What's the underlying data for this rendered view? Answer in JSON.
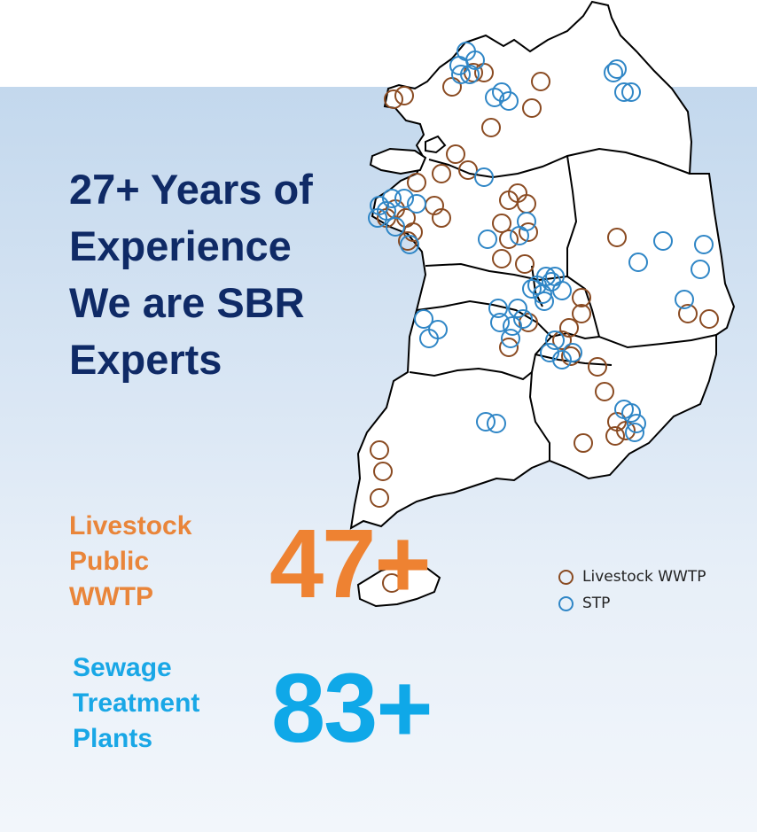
{
  "headline": {
    "lines": [
      "27+ Years of",
      "Experience",
      "We are SBR",
      "Experts"
    ]
  },
  "stats": {
    "livestock": {
      "label_lines": [
        "Livestock",
        "Public",
        "WWTP"
      ],
      "value": "47+"
    },
    "sewage": {
      "label_lines": [
        "Sewage",
        "Treatment",
        "Plants"
      ],
      "value": "83+"
    }
  },
  "legend": {
    "livestock": "Livestock WWTP",
    "stp": "STP"
  },
  "colors": {
    "headline": "#0f2a66",
    "livestock_accent": "#ee8232",
    "sewage_accent": "#0fa8e8",
    "livestock_marker": "#8a4b22",
    "stp_marker": "#2f86c6"
  },
  "map": {
    "region": "South Korea",
    "marker_counts_shown": {
      "livestock_wwtp": 47,
      "stp": 83
    }
  }
}
